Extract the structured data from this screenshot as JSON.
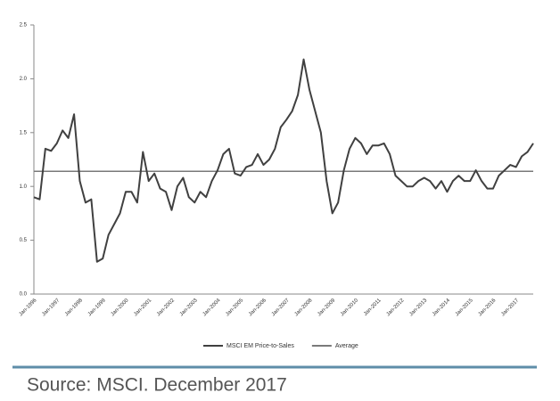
{
  "chart_data": {
    "type": "line",
    "categories": [
      "Jan-1996",
      null,
      null,
      null,
      "Jan-1997",
      null,
      null,
      null,
      "Jan-1998",
      null,
      null,
      null,
      "Jan-1999",
      null,
      null,
      null,
      "Jan-2000",
      null,
      null,
      null,
      "Jan-2001",
      null,
      null,
      null,
      "Jan-2002",
      null,
      null,
      null,
      "Jan-2003",
      null,
      null,
      null,
      "Jan-2004",
      null,
      null,
      null,
      "Jan-2005",
      null,
      null,
      null,
      "Jan-2006",
      null,
      null,
      null,
      "Jan-2007",
      null,
      null,
      null,
      "Jan-2008",
      null,
      null,
      null,
      "Jan-2009",
      null,
      null,
      null,
      "Jan-2010",
      null,
      null,
      null,
      "Jan-2011",
      null,
      null,
      null,
      "Jan-2012",
      null,
      null,
      null,
      "Jan-2013",
      null,
      null,
      null,
      "Jan-2014",
      null,
      null,
      null,
      "Jan-2015",
      null,
      null,
      null,
      "Jan-2016",
      null,
      null,
      null,
      "Jan-2017",
      null,
      null,
      null
    ],
    "series": [
      {
        "name": "MSCI EM Price-to-Sales",
        "color": "#404040",
        "values": [
          0.9,
          0.88,
          1.35,
          1.33,
          1.4,
          1.52,
          1.45,
          1.67,
          1.05,
          0.85,
          0.88,
          0.3,
          0.33,
          0.55,
          0.65,
          0.75,
          0.95,
          0.95,
          0.85,
          1.32,
          1.05,
          1.12,
          0.98,
          0.95,
          0.78,
          1.0,
          1.08,
          0.9,
          0.85,
          0.95,
          0.9,
          1.05,
          1.15,
          1.3,
          1.35,
          1.12,
          1.1,
          1.18,
          1.2,
          1.3,
          1.2,
          1.25,
          1.35,
          1.55,
          1.62,
          1.7,
          1.85,
          2.18,
          1.9,
          1.7,
          1.5,
          1.05,
          0.75,
          0.85,
          1.15,
          1.35,
          1.45,
          1.4,
          1.3,
          1.38,
          1.38,
          1.4,
          1.3,
          1.1,
          1.05,
          1.0,
          1.0,
          1.05,
          1.08,
          1.05,
          0.98,
          1.05,
          0.95,
          1.05,
          1.1,
          1.05,
          1.05,
          1.15,
          1.05,
          0.98,
          0.98,
          1.1,
          1.15,
          1.2,
          1.18,
          1.28,
          1.32,
          1.4
        ]
      }
    ],
    "reference_lines": [
      {
        "name": "Average",
        "value": 1.14,
        "color": "#7a7a7a"
      }
    ],
    "ylim": [
      0,
      2.5
    ],
    "yticks": [
      {
        "value": 0,
        "label": "0.0"
      },
      0.5,
      {
        "value": 1,
        "label": "1.0"
      },
      1.5,
      {
        "value": 2,
        "label": "2.0"
      },
      2.5
    ],
    "grid": false,
    "source": "Source: MSCI. December 2017"
  }
}
